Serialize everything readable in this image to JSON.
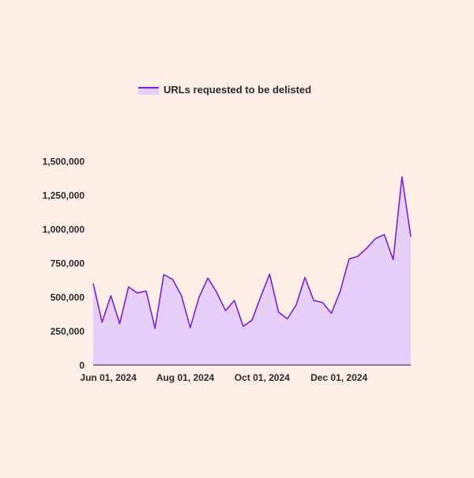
{
  "chart_data": {
    "type": "area",
    "legend": {
      "label": "URLs requested to be delisted",
      "position": "top-left"
    },
    "x_ticks": [
      "Jun 01, 2024",
      "Aug 01, 2024",
      "Oct 01, 2024",
      "Dec 01, 2024"
    ],
    "y_ticks": [
      "0",
      "250,000",
      "500,000",
      "750,000",
      "1,000,000",
      "1,250,000",
      "1,500,000"
    ],
    "ylim": [
      0,
      1500000
    ],
    "grid": false,
    "series": [
      {
        "name": "URLs requested to be delisted",
        "x": [
          "2024-05-20",
          "2024-05-27",
          "2024-06-03",
          "2024-06-10",
          "2024-06-17",
          "2024-06-24",
          "2024-07-01",
          "2024-07-08",
          "2024-07-15",
          "2024-07-22",
          "2024-07-29",
          "2024-08-05",
          "2024-08-12",
          "2024-08-19",
          "2024-08-26",
          "2024-09-02",
          "2024-09-09",
          "2024-09-16",
          "2024-09-23",
          "2024-09-30",
          "2024-10-07",
          "2024-10-14",
          "2024-10-21",
          "2024-10-28",
          "2024-11-04",
          "2024-11-11",
          "2024-11-18",
          "2024-11-25",
          "2024-12-02",
          "2024-12-09",
          "2024-12-16",
          "2024-12-23",
          "2024-12-30",
          "2025-01-06",
          "2025-01-13",
          "2025-01-20",
          "2025-01-27"
        ],
        "values": [
          600000,
          315000,
          510000,
          305000,
          575000,
          530000,
          545000,
          270000,
          665000,
          630000,
          510000,
          275000,
          500000,
          640000,
          535000,
          400000,
          475000,
          285000,
          330000,
          505000,
          670000,
          390000,
          340000,
          440000,
          645000,
          475000,
          460000,
          380000,
          545000,
          780000,
          800000,
          860000,
          930000,
          960000,
          775000,
          1385000,
          945000
        ]
      }
    ],
    "colors": {
      "line": "#7a1fe0",
      "fill": "#e6cff8",
      "axis": "#222222",
      "background": "#fdeee6"
    }
  }
}
